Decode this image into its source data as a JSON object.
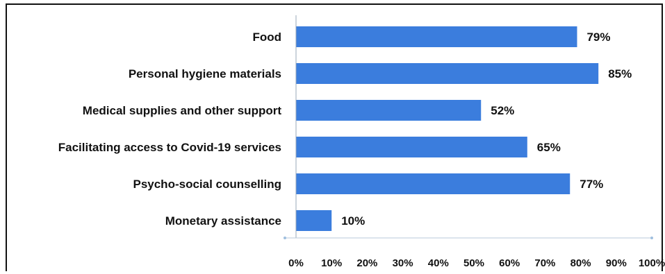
{
  "chart_data": {
    "type": "bar",
    "orientation": "horizontal",
    "categories": [
      "Food",
      "Personal hygiene materials",
      "Medical supplies and other support",
      "Facilitating access to Covid-19 services",
      "Psycho-social counselling",
      "Monetary assistance"
    ],
    "values": [
      79,
      85,
      52,
      65,
      77,
      10
    ],
    "value_labels": [
      "79%",
      "85%",
      "52%",
      "65%",
      "77%",
      "10%"
    ],
    "xlim": [
      0,
      100
    ],
    "x_ticks": [
      0,
      10,
      20,
      30,
      40,
      50,
      60,
      70,
      80,
      90,
      100
    ],
    "x_tick_labels": [
      "0%",
      "10%",
      "20%",
      "30%",
      "40%",
      "50%",
      "60%",
      "70%",
      "80%",
      "90%",
      "100%"
    ],
    "title": "",
    "xlabel": "",
    "ylabel": "",
    "grid": false,
    "legend": "none",
    "bar_color": "#3b7ddd"
  }
}
